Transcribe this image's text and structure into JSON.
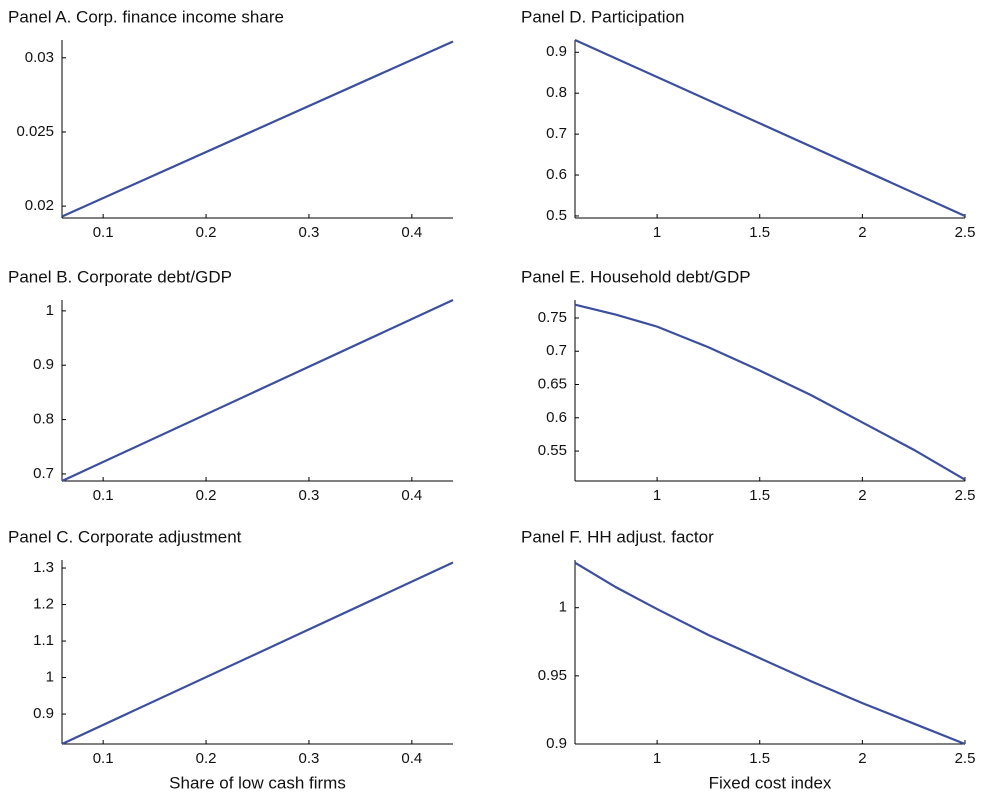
{
  "chart_data": [
    {
      "type": "line",
      "title": "Panel A. Corp. finance income share",
      "color": "#3b4f9e",
      "x": [
        0.06,
        0.44
      ],
      "values": [
        0.0193,
        0.0311
      ],
      "xlim": [
        0.06,
        0.44
      ],
      "ylim": [
        0.0192,
        0.0312
      ],
      "xticks": [
        0.1,
        0.2,
        0.3,
        0.4
      ],
      "yticks": [
        0.02,
        0.025,
        0.03
      ]
    },
    {
      "type": "line",
      "title": "Panel D. Participation",
      "color": "#3b4f9e",
      "x": [
        0.6,
        2.5
      ],
      "values": [
        0.93,
        0.5
      ],
      "xlim": [
        0.6,
        2.5
      ],
      "ylim": [
        0.495,
        0.93
      ],
      "xticks": [
        1,
        1.5,
        2,
        2.5
      ],
      "yticks": [
        0.5,
        0.6,
        0.7,
        0.8,
        0.9
      ]
    },
    {
      "type": "line",
      "title": "Panel B. Corporate debt/GDP",
      "color": "#3b4f9e",
      "x": [
        0.06,
        0.44
      ],
      "values": [
        0.687,
        1.02
      ],
      "xlim": [
        0.06,
        0.44
      ],
      "ylim": [
        0.687,
        1.02
      ],
      "xticks": [
        0.1,
        0.2,
        0.3,
        0.4
      ],
      "yticks": [
        0.7,
        0.8,
        0.9,
        1
      ]
    },
    {
      "type": "line",
      "title": "Panel E. Household debt/GDP",
      "color": "#3b4f9e",
      "x": [
        0.6,
        0.8,
        1,
        1.25,
        1.5,
        1.75,
        2,
        2.25,
        2.5
      ],
      "values": [
        0.77,
        0.755,
        0.737,
        0.706,
        0.671,
        0.634,
        0.593,
        0.552,
        0.507
      ],
      "xlim": [
        0.6,
        2.5
      ],
      "ylim": [
        0.505,
        0.777
      ],
      "xticks": [
        1,
        1.5,
        2,
        2.5
      ],
      "yticks": [
        0.55,
        0.6,
        0.65,
        0.7,
        0.75
      ]
    },
    {
      "type": "line",
      "title": "Panel C. Corporate adjustment",
      "xlabel": "Share of low cash firms",
      "color": "#3b4f9e",
      "x": [
        0.06,
        0.44
      ],
      "values": [
        0.818,
        1.315
      ],
      "xlim": [
        0.06,
        0.44
      ],
      "ylim": [
        0.818,
        1.322
      ],
      "xticks": [
        0.1,
        0.2,
        0.3,
        0.4
      ],
      "yticks": [
        0.9,
        1,
        1.1,
        1.2,
        1.3
      ]
    },
    {
      "type": "line",
      "title": "Panel F. HH adjust. factor",
      "xlabel": "Fixed cost index",
      "color": "#3b4f9e",
      "x": [
        0.6,
        0.8,
        1,
        1.25,
        1.5,
        1.75,
        2,
        2.25,
        2.5
      ],
      "values": [
        1.033,
        1.015,
        0.999,
        0.98,
        0.963,
        0.946,
        0.93,
        0.915,
        0.9
      ],
      "xlim": [
        0.6,
        2.5
      ],
      "ylim": [
        0.9,
        1.035
      ],
      "xticks": [
        1,
        1.5,
        2,
        2.5
      ],
      "yticks": [
        0.9,
        0.95,
        1
      ]
    }
  ]
}
